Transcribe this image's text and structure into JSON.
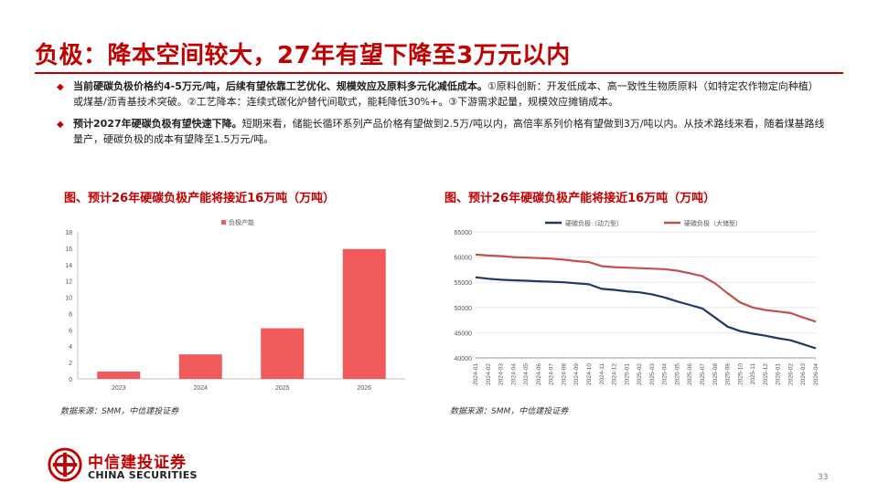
{
  "slide": {
    "title": "负极：降本空间较大，27年有望下降至3万元以内",
    "page_number": "33"
  },
  "bullets": [
    {
      "bold": "当前硬碳负极价格约4-5万元/吨，后续有望依靠工艺优化、规模效应及原料多元化减低成本。",
      "text": "①原料创新：开发低成本、高一致性生物质原料（如特定农作物定向种植）或煤基/沥青基技术突破。②工艺降本：连续式碳化炉替代间歇式，能耗降低30%+。③下游需求起量，规模效应摊销成本。"
    },
    {
      "bold": "预计2027年硬碳负极有望快速下降。",
      "text": "短期来看，储能长循环系列产品价格有望做到2.5万/吨以内，高倍率系列价格有望做到3万/吨以内。从技术路线来看，随着煤基路线量产，硬碳负极的成本有望降至1.5万元/吨。"
    }
  ],
  "left_panel": {
    "caption": "图、预计26年硬碳负极产能将接近16万吨（万吨）",
    "source": "数据来源：SMM，中信建投证券"
  },
  "right_panel": {
    "caption": "图、预计26年硬碳负极产能将接近16万吨（万吨）",
    "source": "数据来源：SMM，中信建投证券"
  },
  "logo": {
    "name_cn": "中信建投证券",
    "name_en": "CHINA SECURITIES"
  },
  "chart_data": [
    {
      "type": "bar",
      "categories": [
        "2023",
        "2024",
        "2025",
        "2026"
      ],
      "series": [
        {
          "name": "负极产能",
          "values": [
            0.9,
            3.0,
            6.2,
            15.9
          ]
        }
      ],
      "ylim": [
        0,
        18
      ],
      "yticks": [
        "0",
        "2",
        "4",
        "6",
        "8",
        "10",
        "12",
        "14",
        "16",
        "18"
      ],
      "grid": false,
      "legend": "top-center",
      "color": "#f05a5a"
    },
    {
      "type": "line",
      "x": [
        "2024-01",
        "2024-02",
        "2024-03",
        "2024-04",
        "2024-05",
        "2024-06",
        "2024-07",
        "2024-08",
        "2024-09",
        "2024-10",
        "2024-11",
        "2024-12",
        "2025-01",
        "2025-02",
        "2025-03",
        "2025-04",
        "2025-05",
        "2025-06",
        "2025-07",
        "2025-08",
        "2025-09",
        "2025-10",
        "2025-11",
        "2025-12",
        "2026-01",
        "2026-02",
        "2026-03",
        "2026-04"
      ],
      "series": [
        {
          "name": "硬碳负极（动力型）",
          "color": "#1f3864",
          "values": [
            56000,
            55700,
            55500,
            55400,
            55300,
            55200,
            55100,
            55000,
            54800,
            54600,
            53700,
            53500,
            53200,
            53000,
            52600,
            52000,
            51200,
            50500,
            49800,
            48000,
            46200,
            45300,
            44800,
            44400,
            43900,
            43500,
            42700,
            41900
          ]
        },
        {
          "name": "硬碳负极（大储型）",
          "color": "#c0504d",
          "values": [
            60500,
            60300,
            60200,
            60000,
            59900,
            59800,
            59700,
            59500,
            59200,
            59000,
            58200,
            58000,
            57900,
            57800,
            57700,
            57600,
            57300,
            56800,
            56200,
            54800,
            52800,
            51000,
            50000,
            49500,
            49200,
            48900,
            48000,
            47200
          ]
        }
      ],
      "ylim": [
        40000,
        65000
      ],
      "yticks": [
        "40000",
        "45000",
        "50000",
        "55000",
        "60000",
        "65000"
      ],
      "grid": true,
      "legend": "top-center"
    }
  ]
}
